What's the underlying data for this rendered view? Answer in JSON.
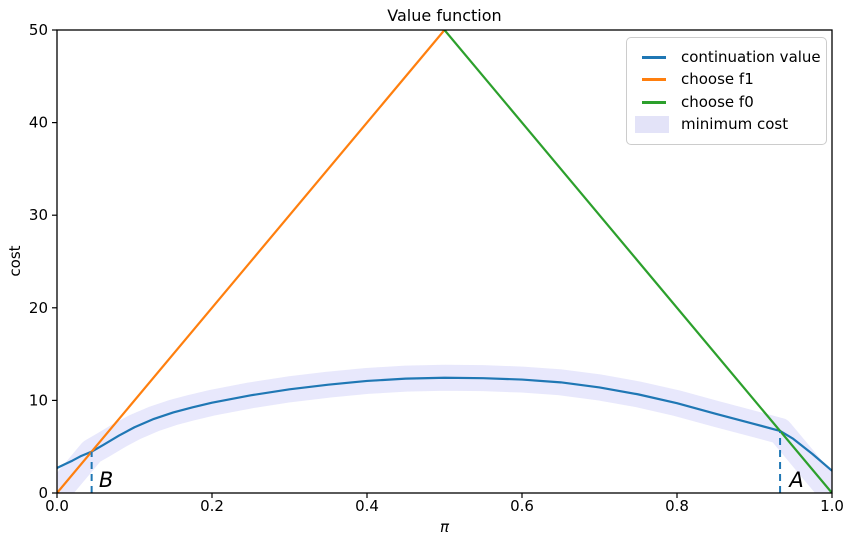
{
  "figure": {
    "title": "Value function",
    "xlabel": "π",
    "ylabel": "cost"
  },
  "chart_data": {
    "type": "line",
    "title": "Value function",
    "xlabel": "π",
    "ylabel": "cost",
    "xlim": [
      0,
      1
    ],
    "ylim": [
      0,
      50
    ],
    "grid": false,
    "legend_position": "upper right",
    "xticks": {
      "values": [
        0,
        0.2,
        0.4,
        0.6,
        0.8,
        1.0
      ],
      "labels": [
        "0.0",
        "0.2",
        "0.4",
        "0.6",
        "0.8",
        "1.0"
      ]
    },
    "yticks": {
      "values": [
        0,
        10,
        20,
        30,
        40,
        50
      ],
      "labels": [
        "0",
        "10",
        "20",
        "30",
        "40",
        "50"
      ]
    },
    "legend": {
      "items": [
        {
          "label": "continuation value",
          "swatch": "line",
          "color": "#1f77b4"
        },
        {
          "label": "choose f1",
          "swatch": "line",
          "color": "#ff7f0e"
        },
        {
          "label": "choose f0",
          "swatch": "line",
          "color": "#2ca02c"
        },
        {
          "label": "minimum cost",
          "swatch": "patch",
          "color": "#e3e3f8"
        }
      ]
    },
    "series": [
      {
        "name": "minimum cost",
        "type": "band",
        "color": "rgba(80,80,230,0.13)",
        "linewidth": 26,
        "x": [
          0.0,
          0.0447,
          0.06,
          0.08,
          0.1,
          0.125,
          0.15,
          0.175,
          0.2,
          0.25,
          0.3,
          0.35,
          0.4,
          0.45,
          0.5,
          0.55,
          0.6,
          0.65,
          0.7,
          0.75,
          0.8,
          0.85,
          0.9,
          0.933,
          0.95,
          0.975,
          1.0
        ],
        "y": [
          0.0,
          4.47,
          5.2,
          6.2,
          7.1,
          8.0,
          8.7,
          9.25,
          9.75,
          10.55,
          11.2,
          11.7,
          12.1,
          12.35,
          12.45,
          12.4,
          12.25,
          11.95,
          11.4,
          10.65,
          9.7,
          8.55,
          7.45,
          6.7,
          5.0,
          2.5,
          0.0
        ]
      },
      {
        "name": "continuation value",
        "type": "line",
        "color": "#1f77b4",
        "linewidth": 2.2,
        "x": [
          0.0,
          0.01,
          0.02,
          0.03,
          0.0447,
          0.06,
          0.08,
          0.1,
          0.125,
          0.15,
          0.175,
          0.2,
          0.25,
          0.3,
          0.35,
          0.4,
          0.45,
          0.5,
          0.55,
          0.6,
          0.65,
          0.7,
          0.75,
          0.8,
          0.85,
          0.9,
          0.933,
          0.95,
          0.975,
          1.0
        ],
        "y": [
          2.7,
          3.1,
          3.5,
          3.95,
          4.47,
          5.2,
          6.2,
          7.1,
          8.0,
          8.7,
          9.25,
          9.75,
          10.55,
          11.2,
          11.7,
          12.1,
          12.35,
          12.45,
          12.4,
          12.25,
          11.95,
          11.4,
          10.65,
          9.7,
          8.55,
          7.45,
          6.7,
          5.85,
          4.2,
          2.4
        ]
      },
      {
        "name": "choose f1",
        "type": "line",
        "color": "#ff7f0e",
        "linewidth": 2.2,
        "x": [
          0.0,
          0.5
        ],
        "y": [
          0,
          50
        ]
      },
      {
        "name": "choose f0",
        "type": "line",
        "color": "#2ca02c",
        "linewidth": 2.2,
        "x": [
          0.5,
          1.0
        ],
        "y": [
          50,
          0
        ]
      }
    ],
    "guidelines": [
      {
        "name": "threshold-B",
        "x": 0.0447,
        "y_top": 4.47,
        "color": "#1f77b4",
        "style": "dashed"
      },
      {
        "name": "threshold-A",
        "x": 0.933,
        "y_top": 6.7,
        "color": "#1f77b4",
        "style": "dashed"
      }
    ],
    "annotations": [
      {
        "text": "B",
        "x": 0.054,
        "y": 0.65,
        "italic": true
      },
      {
        "text": "A",
        "x": 0.945,
        "y": 0.65,
        "italic": true
      }
    ]
  }
}
